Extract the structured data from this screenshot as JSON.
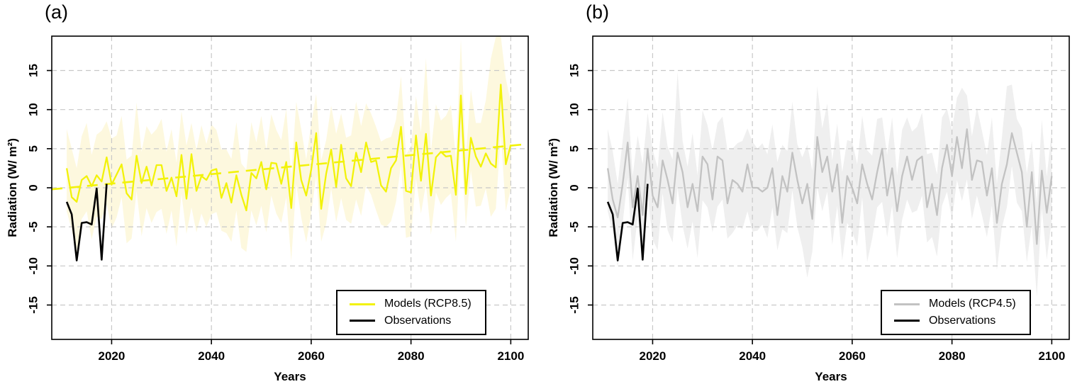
{
  "chart_data": [
    {
      "type": "line",
      "panel_label": "(a)",
      "xlabel": "Years",
      "ylabel": "Radiation (W/ m²)",
      "x_ticks": [
        2020,
        2040,
        2060,
        2080,
        2100
      ],
      "y_ticks": [
        -15,
        -10,
        -5,
        0,
        5,
        10,
        15
      ],
      "xlim": [
        2008,
        2103.5
      ],
      "ylim": [
        -19.4,
        19.4
      ],
      "grid": "dashed",
      "colors": {
        "model_line": "#F2F20A",
        "band_fill": "#FDF8DE",
        "trend_line": "#F2F20A",
        "observations": "#000000",
        "grid": "#C8C8C8"
      },
      "years_start": 2011,
      "years_end": 2100,
      "series": [
        {
          "name": "Models (RCP8.5) ensemble mean",
          "values": [
            2.5,
            -1.2,
            -1.8,
            1.0,
            1.5,
            0.2,
            1.6,
            0.8,
            3.9,
            0.4,
            1.7,
            3.0,
            -0.7,
            -1.5,
            4.1,
            0.6,
            2.7,
            0.3,
            2.9,
            2.9,
            -0.4,
            1.3,
            -1.1,
            4.2,
            -1.4,
            4.3,
            -0.4,
            1.5,
            1.0,
            2.2,
            2.4,
            -1.3,
            0.6,
            -1.9,
            1.6,
            -0.9,
            -2.9,
            1.9,
            1.2,
            3.3,
            -0.2,
            3.2,
            3.1,
            0.5,
            3.3,
            -2.6,
            5.8,
            1.0,
            -1.0,
            2.3,
            7.0,
            -2.7,
            1.8,
            4.9,
            0.1,
            5.5,
            1.2,
            0.2,
            4.5,
            2.0,
            5.8,
            3.3,
            3.5,
            0.3,
            -0.5,
            2.5,
            3.5,
            7.8,
            -0.4,
            -0.6,
            6.7,
            0.9,
            6.9,
            -1.0,
            3.9,
            4.6,
            4.0,
            4.1,
            -0.9,
            11.8,
            -0.8,
            6.4,
            4.0,
            2.7,
            4.4,
            3.1,
            2.6,
            13.2,
            3.0,
            5.5
          ]
        },
        {
          "name": "Model spread upper bound",
          "values": [
            7.5,
            5.0,
            2.5,
            6.6,
            8.3,
            4.2,
            6.8,
            7.3,
            8.5,
            6.3,
            6.7,
            9.2,
            3.6,
            4.1,
            10.9,
            4.6,
            7.9,
            6.8,
            7.5,
            8.8,
            4.6,
            7.5,
            3.2,
            9.8,
            5.4,
            8.3,
            4.8,
            8.0,
            5.6,
            8.1,
            7.4,
            4.9,
            4.9,
            3.7,
            8.4,
            3.1,
            2.3,
            8.4,
            5.8,
            9.2,
            4.8,
            9.4,
            7.4,
            6.1,
            10.1,
            1.4,
            11.0,
            7.5,
            3.6,
            8.2,
            12.0,
            3.5,
            6.1,
            10.5,
            6.9,
            9.5,
            6.4,
            6.7,
            11.0,
            7.9,
            10.8,
            9.5,
            7.8,
            5.9,
            6.3,
            6.5,
            8.7,
            14.3,
            4.2,
            5.3,
            11.7,
            7.1,
            16.6,
            4.6,
            10.7,
            8.6,
            9.2,
            10.6,
            3.7,
            19.0,
            4.2,
            12.6,
            8.3,
            8.3,
            11.2,
            16.5,
            19.3,
            19.4,
            14.0,
            10.9
          ]
        },
        {
          "name": "Model spread lower bound",
          "values": [
            -3.0,
            -5.4,
            -8.2,
            -4.0,
            -3.0,
            -6.6,
            -3.7,
            -4.0,
            -2.1,
            -5.2,
            -3.8,
            -1.2,
            -7.1,
            -6.5,
            -0.4,
            -6.2,
            -2.6,
            -4.5,
            -3.1,
            -2.7,
            -5.9,
            -2.9,
            -7.5,
            -0.8,
            -5.9,
            -2.5,
            -5.7,
            -3.3,
            -5.0,
            -3.4,
            -3.1,
            -5.5,
            -5.8,
            -6.9,
            -2.9,
            -7.7,
            -8.2,
            -2.9,
            -4.8,
            -2.3,
            -5.7,
            -1.0,
            -3.3,
            -4.5,
            -1.2,
            -9.4,
            0.5,
            -3.8,
            -7.0,
            -3.3,
            1.5,
            -6.9,
            -4.6,
            -0.1,
            -4.4,
            -1.3,
            -4.1,
            -4.6,
            -1.5,
            -3.6,
            0.3,
            -0.9,
            -2.9,
            -4.7,
            -5.0,
            -4.3,
            -1.8,
            3.0,
            -6.4,
            -6.2,
            1.2,
            -3.3,
            0.5,
            -6.0,
            -0.6,
            -2.2,
            -1.3,
            -0.7,
            -6.9,
            6.2,
            -5.0,
            2.2,
            -2.4,
            -2.3,
            -0.1,
            -3.7,
            -2.7,
            7.0,
            -3.0,
            -0.1
          ]
        }
      ],
      "trend": {
        "x": [
          2008,
          2103.5
        ],
        "y": [
          -0.2,
          5.6
        ],
        "style": "dashed"
      },
      "observations": {
        "name": "Observations",
        "years_start": 2011,
        "years_end": 2019,
        "values": [
          -1.8,
          -3.4,
          -9.3,
          -4.5,
          -4.4,
          -4.7,
          -0.1,
          -9.2,
          0.5
        ]
      },
      "legend": {
        "position": "inset-bottom-right",
        "items": [
          {
            "label": "Models (RCP8.5)",
            "color": "#F2F20A"
          },
          {
            "label": "Observations",
            "color": "#000000"
          }
        ]
      }
    },
    {
      "type": "line",
      "panel_label": "(b)",
      "xlabel": "Years",
      "ylabel": "Radiation (W/ m²)",
      "x_ticks": [
        2020,
        2040,
        2060,
        2080,
        2100
      ],
      "y_ticks": [
        -15,
        -10,
        -5,
        0,
        5,
        10,
        15
      ],
      "xlim": [
        2008,
        2103.5
      ],
      "ylim": [
        -19.4,
        19.4
      ],
      "grid": "dashed",
      "colors": {
        "model_line": "#C2C2C2",
        "band_fill": "#EFEFEF",
        "observations": "#000000",
        "grid": "#C8C8C8"
      },
      "years_start": 2011,
      "years_end": 2100,
      "series": [
        {
          "name": "Models (RCP4.5) ensemble mean",
          "values": [
            2.5,
            -1.5,
            -3.8,
            0.5,
            5.8,
            -2.5,
            1.5,
            -3.5,
            5.0,
            -1.0,
            -2.5,
            3.5,
            1.0,
            -2.0,
            4.5,
            2.0,
            -2.5,
            0.5,
            -3.0,
            4.0,
            3.0,
            -1.5,
            4.0,
            3.5,
            -2.0,
            1.0,
            0.5,
            -0.5,
            3.0,
            0.0,
            0.0,
            -0.5,
            0.0,
            2.5,
            -3.5,
            1.5,
            -0.5,
            4.5,
            1.0,
            -2.0,
            0.5,
            -4.0,
            6.5,
            2.0,
            4.0,
            -0.5,
            3.0,
            -4.5,
            1.5,
            0.0,
            -2.0,
            3.0,
            0.5,
            -1.5,
            2.0,
            5.0,
            -1.0,
            2.5,
            -3.0,
            1.5,
            4.0,
            1.0,
            3.5,
            4.0,
            -2.5,
            0.5,
            -3.5,
            2.5,
            5.5,
            1.5,
            6.5,
            2.5,
            7.5,
            1.0,
            3.5,
            3.3,
            -1.0,
            2.5,
            -4.5,
            0.5,
            3.0,
            7.0,
            4.5,
            2.0,
            -5.0,
            2.0,
            -7.2,
            2.2,
            -3.2,
            1.5
          ]
        },
        {
          "name": "Model spread upper bound",
          "values": [
            7.5,
            4.7,
            0.5,
            6.1,
            11.5,
            1.5,
            6.7,
            3.0,
            9.6,
            4.9,
            2.5,
            9.7,
            5.3,
            3.6,
            14.8,
            6.0,
            2.7,
            7.0,
            1.6,
            9.9,
            8.0,
            4.7,
            8.3,
            9.1,
            4.8,
            5.0,
            5.7,
            6.0,
            7.6,
            5.9,
            5.0,
            5.7,
            4.3,
            8.1,
            3.3,
            5.5,
            4.7,
            11.0,
            5.6,
            3.9,
            5.5,
            2.2,
            13.0,
            7.6,
            10.8,
            3.5,
            8.2,
            2.0,
            6.1,
            5.9,
            3.0,
            9.2,
            4.8,
            4.1,
            8.8,
            9.0,
            4.2,
            9.0,
            1.6,
            7.4,
            9.0,
            7.2,
            7.8,
            9.6,
            4.3,
            4.5,
            1.7,
            9.0,
            10.1,
            7.4,
            11.5,
            12.8,
            11.8,
            6.6,
            10.3,
            7.3,
            4.2,
            9.0,
            0.5,
            6.4,
            13.0,
            13.2,
            8.8,
            7.6,
            1.8,
            6.0,
            -2.0,
            8.7,
            1.4,
            7.4
          ]
        },
        {
          "name": "Model spread lower bound",
          "values": [
            -3.0,
            -5.7,
            -10.2,
            -4.5,
            1.3,
            -9.3,
            -3.8,
            -8.3,
            -1.0,
            -6.6,
            -8.0,
            -0.7,
            -5.4,
            -7.0,
            0.0,
            -4.8,
            -7.8,
            -4.3,
            -9.0,
            -1.6,
            -2.5,
            -5.7,
            -2.4,
            -1.5,
            -6.5,
            -5.8,
            -4.8,
            -5.3,
            -3.0,
            -5.6,
            -5.5,
            -4.7,
            -6.4,
            -2.5,
            -8.0,
            -5.3,
            -5.8,
            -0.3,
            -5.0,
            -7.6,
            -11.5,
            -8.2,
            0.1,
            -3.0,
            -0.5,
            -7.3,
            -2.3,
            -9.3,
            -4.5,
            -5.6,
            -7.5,
            -1.2,
            -9.5,
            -6.5,
            -2.5,
            -1.8,
            -6.3,
            -2.3,
            -9.0,
            -4.1,
            -1.5,
            -3.2,
            -2.9,
            -1.0,
            -7.0,
            -6.3,
            -8.8,
            -2.3,
            -0.5,
            -4.1,
            1.0,
            -1.7,
            1.1,
            -4.0,
            -1.0,
            -3.5,
            -6.3,
            -2.3,
            -10.5,
            -5.1,
            -2.5,
            2.8,
            -1.9,
            -3.0,
            -9.5,
            -4.8,
            -14.0,
            -2.6,
            -9.2,
            -4.1
          ]
        }
      ],
      "trend": null,
      "observations": {
        "name": "Observations",
        "years_start": 2011,
        "years_end": 2019,
        "values": [
          -1.8,
          -3.4,
          -9.3,
          -4.5,
          -4.4,
          -4.7,
          -0.1,
          -9.2,
          0.5
        ]
      },
      "legend": {
        "position": "inset-bottom-right",
        "items": [
          {
            "label": "Models (RCP4.5)",
            "color": "#C2C2C2"
          },
          {
            "label": "Observations",
            "color": "#000000"
          }
        ]
      }
    }
  ]
}
